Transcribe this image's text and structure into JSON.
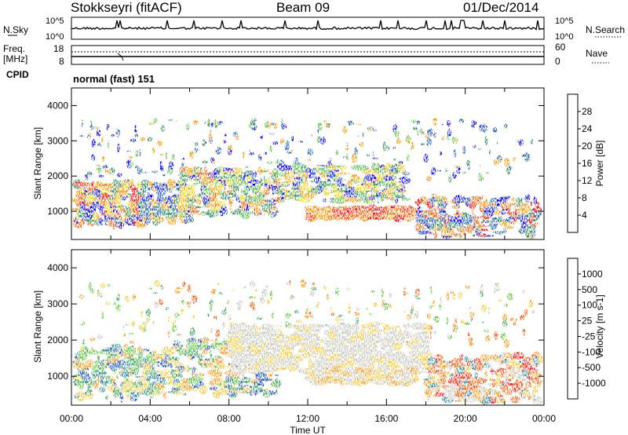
{
  "header": {
    "station": "Stokkseyri (fitACF)",
    "beam": "Beam 09",
    "date": "01/Dec/2014"
  },
  "strip": {
    "nsky_label": "N.Sky",
    "nsearch_label": "N.Search",
    "nsky_ticks": [
      "10^5",
      "10^0"
    ],
    "nsky_ticks_right": [
      "10^5",
      "10^0"
    ],
    "freq_label_1": "Freq.",
    "freq_label_2": "[MHz]",
    "freq_ticks": [
      "18",
      "8"
    ],
    "nave_ticks": [
      "60",
      "0"
    ],
    "nave_label": "Nave",
    "cpid_label": "CPID",
    "cpid_value": "normal (fast) 151"
  },
  "colors": {
    "power": [
      "#0000ff",
      "#1f5fb4",
      "#2e8b57",
      "#57c24a",
      "#f5d600",
      "#ff9900",
      "#ff5f00",
      "#ff0000"
    ],
    "velocity": [
      "#1f4fbf",
      "#2d8ca0",
      "#3aa056",
      "#5ccc3c",
      "#c8c8c0",
      "#f7cc3a",
      "#ff9a1a",
      "#ff5a0a",
      "#ff1a1a"
    ]
  },
  "chart_data": [
    {
      "type": "heatmap",
      "panel": "power",
      "xlabel": "",
      "ylabel": "Slant Range [km]",
      "y_ticks": [
        "1000",
        "2000",
        "3000",
        "4000"
      ],
      "ylim": [
        200,
        4500
      ],
      "colorbar": {
        "label": "Power [dB]",
        "ticks": [
          "28",
          "24",
          "20",
          "16",
          "12",
          "8",
          "4"
        ],
        "range": [
          0,
          32
        ]
      },
      "features": [
        {
          "t": [
            0.3,
            3.2
          ],
          "range": [
            700,
            1700
          ],
          "level": "high"
        },
        {
          "t": [
            5.5,
            9.5
          ],
          "range": [
            900,
            2100
          ],
          "level": "mid"
        },
        {
          "t": [
            12.5,
            17.0
          ],
          "range": [
            800,
            1100
          ],
          "level": "high"
        },
        {
          "t": [
            20.0,
            23.0
          ],
          "range": [
            400,
            1300
          ],
          "level": "mid"
        }
      ]
    },
    {
      "type": "heatmap",
      "panel": "velocity",
      "xlabel": "Time UT",
      "ylabel": "Slant Range [km]",
      "y_ticks": [
        "1000",
        "2000",
        "3000",
        "4000"
      ],
      "ylim": [
        200,
        4500
      ],
      "x_ticks": [
        "00:00",
        "04:00",
        "08:00",
        "12:00",
        "16:00",
        "20:00",
        "00:00"
      ],
      "colorbar": {
        "label": "Velocity [m s-1]",
        "ticks": [
          "1000",
          "500",
          "100",
          "25",
          "-25",
          "-100",
          "-500",
          "-1000"
        ]
      },
      "features": [
        {
          "t": [
            8.0,
            18.0
          ],
          "range": [
            1100,
            2300
          ],
          "velocity": "ground scatter (~0)"
        },
        {
          "t": [
            18.0,
            23.5
          ],
          "range": [
            300,
            1500
          ],
          "velocity": "negative"
        }
      ]
    }
  ]
}
